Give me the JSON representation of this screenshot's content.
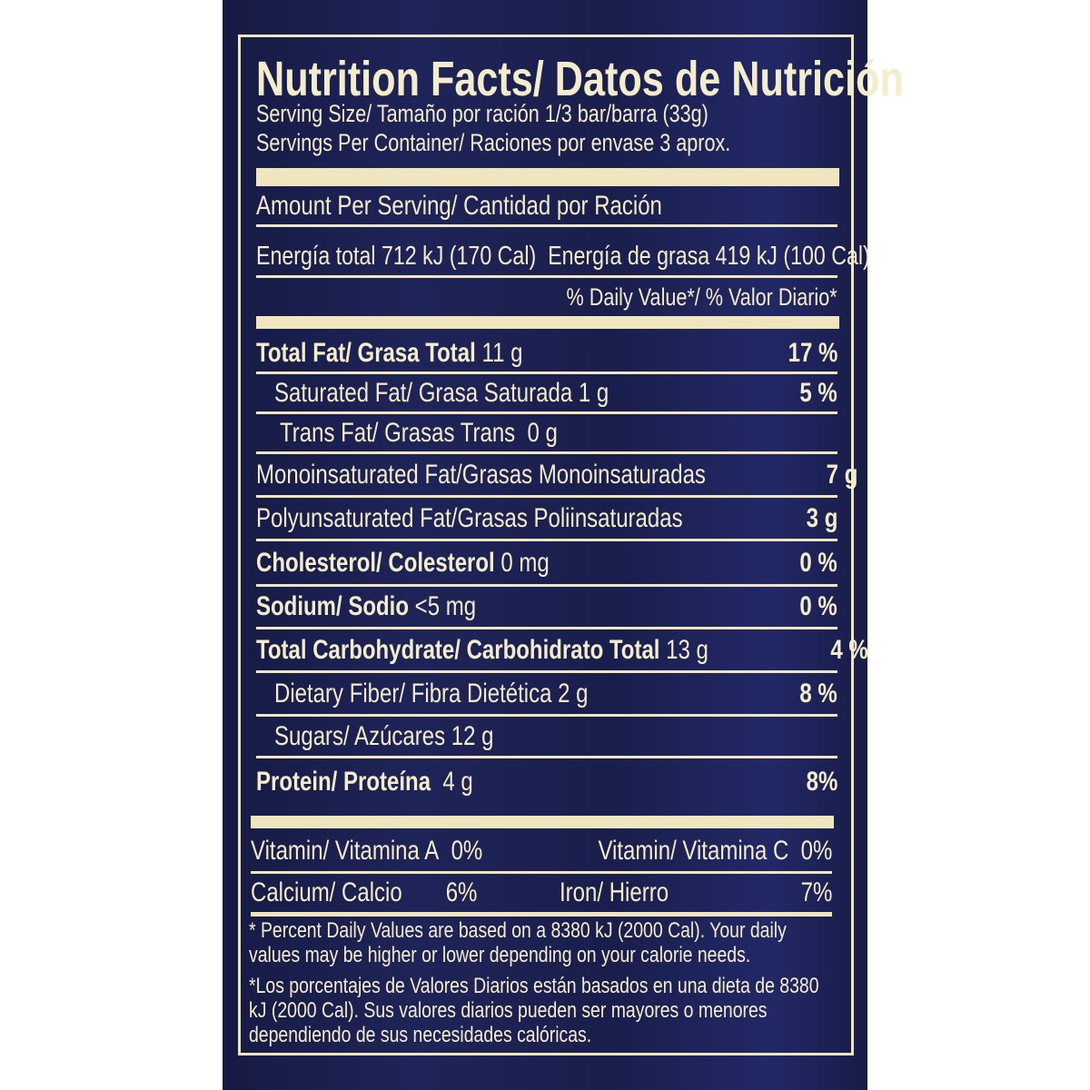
{
  "title": "Nutrition Facts/ Datos de Nutrición",
  "serving_size": "Serving Size/ Tamaño por ración 1/3 bar/barra (33g)",
  "servings_per_container": "Servings Per Container/ Raciones por envase 3 aprox.",
  "amount_per_serving": "Amount Per Serving/ Cantidad por Ración",
  "energy_total": "Energía total 712 kJ (170 Cal)",
  "energy_fat": "Energía de grasa 419 kJ (100 Cal)",
  "daily_value_header": "% Daily Value*/ % Valor Diario*",
  "nutrients": [
    {
      "name": "Total Fat/ Grasa Total",
      "amount": "11 g",
      "value": "17 %"
    },
    {
      "name": "Saturated Fat/ Grasa Saturada",
      "amount": "1 g",
      "value": "5 %"
    },
    {
      "name": "Trans Fat/ Grasas Trans",
      "amount": "0 g",
      "value": ""
    },
    {
      "name": "Monoinsaturated Fat/Grasas Monoinsaturadas",
      "amount": "",
      "value": "7 g"
    },
    {
      "name": "Polyunsaturated Fat/Grasas Poliinsaturadas",
      "amount": "",
      "value": "3 g"
    },
    {
      "name": "Cholesterol/ Colesterol",
      "amount": "0 mg",
      "value": "0 %"
    },
    {
      "name": "Sodium/ Sodio",
      "amount": "<5 mg",
      "value": "0 %"
    },
    {
      "name": "Total Carbohydrate/ Carbohidrato Total",
      "amount": "13 g",
      "value": "4 %"
    },
    {
      "name": "Dietary Fiber/ Fibra Dietética",
      "amount": "2 g",
      "value": "8 %"
    },
    {
      "name": "Sugars/ Azúcares",
      "amount": "12 g",
      "value": ""
    },
    {
      "name": "Protein/ Proteína",
      "amount": "4 g",
      "value": "8%"
    }
  ],
  "vitamins": [
    {
      "name": "Vitamin/ Vitamina A",
      "value": "0%"
    },
    {
      "name": "Vitamin/ Vitamina C",
      "value": "0%"
    },
    {
      "name": "Calcium/ Calcio",
      "value": "6%"
    },
    {
      "name": "Iron/ Hierro",
      "value": "7%"
    }
  ],
  "footnote_en": "* Percent Daily Values are based on a 8380 kJ (2000 Cal). Your daily values may be higher or lower depending on your calorie needs.",
  "footnote_es": "*Los porcentajes de Valores Diarios están basados en una dieta de 8380 kJ (2000 Cal). Sus valores diarios pueden ser mayores o menores dependiendo de sus necesidades calóricas.",
  "colors": {
    "background": "#1c2150",
    "text": "#f4edcc"
  }
}
